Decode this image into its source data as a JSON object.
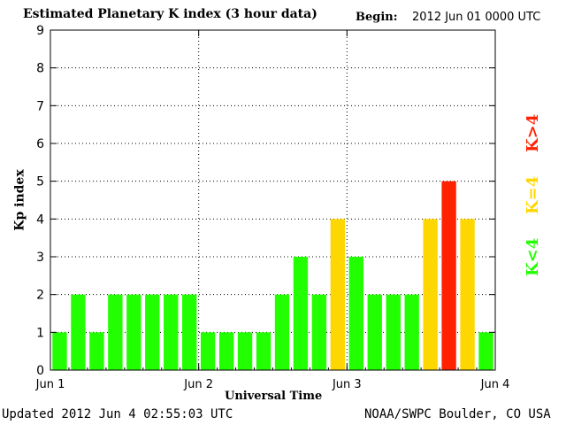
{
  "chart_data": {
    "type": "bar",
    "title": "Estimated Planetary K index (3 hour data)",
    "begin_label": "Begin:",
    "begin_value": "2012 Jun 01 0000 UTC",
    "xlabel": "Universal Time",
    "ylabel": "Kp index",
    "ylim": [
      0,
      9
    ],
    "yticks": [
      "0",
      "1",
      "2",
      "3",
      "4",
      "5",
      "6",
      "7",
      "8",
      "9"
    ],
    "xticks": [
      "Jun 1",
      "Jun 2",
      "Jun 3",
      "Jun 4"
    ],
    "grid": true,
    "values": [
      1,
      2,
      1,
      2,
      2,
      2,
      2,
      2,
      1,
      1,
      1,
      1,
      2,
      3,
      2,
      4,
      3,
      2,
      2,
      2,
      4,
      5,
      4,
      1
    ],
    "colors": {
      "below": "#22ff00",
      "equal": "#ffd700",
      "above": "#ff2200"
    },
    "legend": {
      "low": "K<4",
      "equal": "K=4",
      "high": "K>4"
    }
  },
  "footer": {
    "updated": "Updated 2012 Jun  4 02:55:03 UTC",
    "source": "NOAA/SWPC Boulder, CO USA"
  }
}
